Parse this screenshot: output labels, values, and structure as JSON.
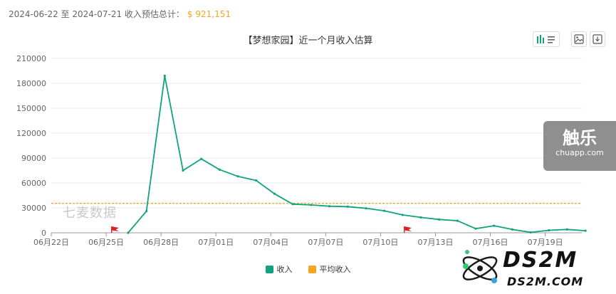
{
  "summary": {
    "date_range": "2024-06-22 至 2024-07-21 收入预估总计：",
    "total": "$ 921,151"
  },
  "colors": {
    "income": "#0fa37f",
    "average": "#f5a623",
    "grid": "#e8e8e8",
    "axis": "#666666",
    "flag": "#e02020"
  },
  "toolbar": {
    "icons": [
      "chart-type-icon",
      "image-icon",
      "download-icon"
    ]
  },
  "watermarks": {
    "qimai": "七麦数据",
    "chuapp_big": "触乐",
    "chuapp_small": "chuapp.com",
    "ds2m_main": "DS2M",
    "ds2m_sub": "DS2M.COM"
  },
  "chart_data": {
    "type": "line",
    "title": "【梦想家园】近一个月收入估算",
    "xlabel": "",
    "ylabel": "",
    "ylim": [
      0,
      210000
    ],
    "yticks": [
      0,
      30000,
      60000,
      90000,
      120000,
      150000,
      180000,
      210000
    ],
    "ytick_labels": [
      "0",
      "30000",
      "60000",
      "90000",
      "120000",
      "150000",
      "180000",
      "210000"
    ],
    "x_tick_labels": [
      "06月22日",
      "06月25日",
      "06月28日",
      "07月01日",
      "07月04日",
      "07月07日",
      "07月10日",
      "07月13日",
      "07月16日",
      "07月19日"
    ],
    "x_tick_day_index": [
      0,
      3,
      6,
      9,
      12,
      15,
      18,
      21,
      24,
      27
    ],
    "day_count": 30,
    "series": [
      {
        "name": "收入",
        "x_day_index": [
          4.2,
          5.2,
          6.2,
          7.2,
          8.2,
          9.2,
          10.2,
          11.2,
          12.2,
          13.2,
          14.2,
          15.2,
          16.2,
          17.2,
          18.2,
          19.2,
          20.2,
          21.2,
          22.2,
          23.2,
          24.2,
          25.2,
          26.2,
          27.2,
          28.2,
          29.2
        ],
        "values": [
          0,
          26000,
          189000,
          75000,
          89000,
          76000,
          68000,
          63000,
          47000,
          34500,
          33500,
          32000,
          31500,
          29500,
          26500,
          21500,
          18500,
          16000,
          14500,
          5000,
          8500,
          4000,
          500,
          3000,
          4000,
          2500
        ]
      },
      {
        "name": "平均收入",
        "constant_value": 35500
      }
    ],
    "annotations": [
      {
        "type": "flag",
        "x_day_index": 3.3,
        "value": 0
      },
      {
        "type": "flag",
        "x_day_index": 19.3,
        "value": 0
      }
    ],
    "legend": [
      "收入",
      "平均收入"
    ],
    "legend_position": "bottom-center",
    "grid": true
  }
}
